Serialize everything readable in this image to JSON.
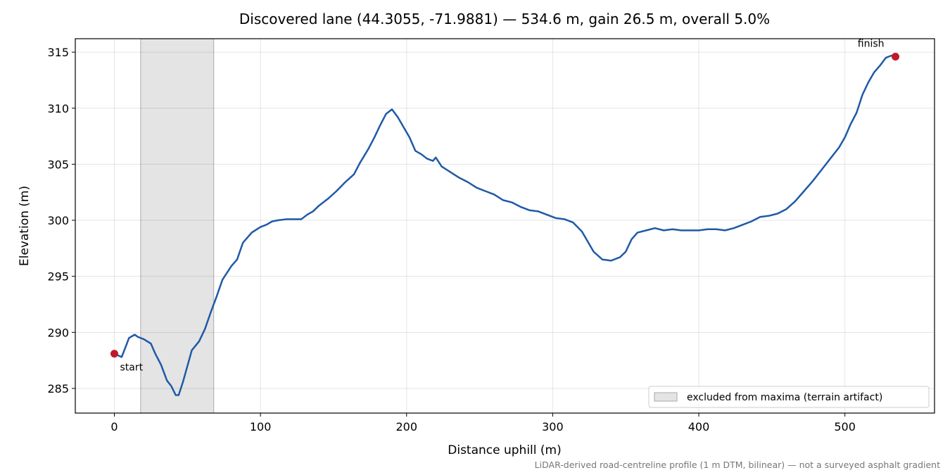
{
  "chart_data": {
    "type": "line",
    "title": "Discovered lane (44.3055, -71.9881) — 534.6 m, gain 26.5 m, overall 5.0%",
    "xlabel": "Distance uphill (m)",
    "ylabel": "Elevation (m)",
    "footnote": "LiDAR-derived road-centreline profile (1 m DTM, bilinear) — not a surveyed asphalt gradient",
    "color": "#1f5aa6",
    "x": [
      0,
      5,
      8,
      10,
      14,
      16,
      20,
      25,
      28,
      32,
      36,
      39,
      42,
      44,
      47,
      50,
      53,
      58,
      62,
      66,
      70,
      74,
      80,
      84,
      88,
      94,
      100,
      104,
      108,
      112,
      118,
      122,
      128,
      132,
      136,
      140,
      146,
      152,
      158,
      164,
      168,
      174,
      178,
      182,
      186,
      190,
      194,
      198,
      202,
      206,
      210,
      214,
      218,
      220,
      224,
      230,
      236,
      242,
      248,
      254,
      260,
      266,
      272,
      278,
      284,
      290,
      296,
      302,
      308,
      314,
      320,
      324,
      328,
      334,
      340,
      346,
      350,
      354,
      358,
      364,
      370,
      376,
      382,
      388,
      394,
      400,
      406,
      412,
      418,
      424,
      430,
      436,
      442,
      448,
      454,
      460,
      466,
      472,
      478,
      484,
      490,
      496,
      500,
      504,
      508,
      512,
      516,
      520,
      524,
      528,
      532,
      534.6
    ],
    "values": [
      288.1,
      287.8,
      288.8,
      289.5,
      289.8,
      289.6,
      289.4,
      289.0,
      288.1,
      287.1,
      285.7,
      285.2,
      284.4,
      284.4,
      285.6,
      287.0,
      288.4,
      289.2,
      290.3,
      291.8,
      293.2,
      294.7,
      295.9,
      296.5,
      298.0,
      298.9,
      299.4,
      299.6,
      299.9,
      300.0,
      300.1,
      300.1,
      300.1,
      300.5,
      300.8,
      301.3,
      301.9,
      302.6,
      303.4,
      304.1,
      305.1,
      306.4,
      307.4,
      308.5,
      309.5,
      309.9,
      309.2,
      308.3,
      307.4,
      306.2,
      305.9,
      305.5,
      305.3,
      305.6,
      304.8,
      304.3,
      303.8,
      303.4,
      302.9,
      302.6,
      302.3,
      301.8,
      301.6,
      301.2,
      300.9,
      300.8,
      300.5,
      300.2,
      300.1,
      299.8,
      299.0,
      298.1,
      297.2,
      296.5,
      296.4,
      296.7,
      297.2,
      298.3,
      298.9,
      299.1,
      299.3,
      299.1,
      299.2,
      299.1,
      299.1,
      299.1,
      299.2,
      299.2,
      299.1,
      299.3,
      299.6,
      299.9,
      300.3,
      300.4,
      300.6,
      301.0,
      301.7,
      302.6,
      303.5,
      304.5,
      305.5,
      306.5,
      307.4,
      308.6,
      309.6,
      311.2,
      312.3,
      313.2,
      313.8,
      314.5,
      314.7,
      314.6
    ],
    "markers": [
      {
        "label": "start",
        "x": 0,
        "y": 288.1,
        "color": "#c0192a"
      },
      {
        "label": "finish",
        "x": 534.6,
        "y": 314.6,
        "color": "#c0192a"
      }
    ],
    "shaded_region": {
      "x": [
        18,
        68
      ],
      "label": "excluded from maxima (terrain artifact)",
      "color": "#d9d9d9"
    },
    "xlim": [
      -26.73,
      561.33
    ],
    "ylim": [
      282.8,
      316.2
    ],
    "xticks": [
      0,
      100,
      200,
      300,
      400,
      500
    ],
    "yticks": [
      285,
      290,
      295,
      300,
      305,
      310,
      315
    ],
    "grid": true,
    "legend": "lower right"
  }
}
